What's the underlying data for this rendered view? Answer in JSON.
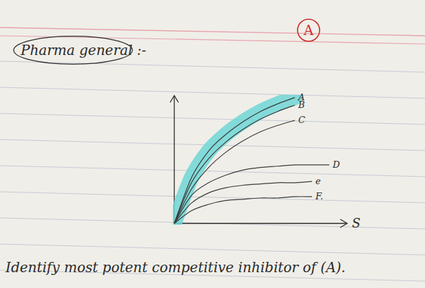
{
  "chart_data": {
    "type": "line",
    "title": "Pharma general :-",
    "x_label": "S",
    "x": [
      0,
      1,
      2,
      3,
      4,
      5,
      6,
      7,
      8,
      9
    ],
    "series": [
      {
        "name": "A",
        "color": "#3a3a3a",
        "values": [
          0,
          3.6,
          5.7,
          7.0,
          8.0,
          8.8,
          9.4,
          9.9,
          null,
          null
        ]
      },
      {
        "name": "B",
        "color": "#3a3a3a",
        "values": [
          0,
          3.2,
          5.1,
          6.4,
          7.4,
          8.2,
          8.8,
          9.3,
          null,
          null
        ]
      },
      {
        "name": "C",
        "color": "#3a3a3a",
        "values": [
          0,
          2.7,
          4.4,
          5.6,
          6.5,
          7.2,
          7.7,
          8.1,
          null,
          null
        ]
      },
      {
        "name": "D",
        "color": "#3a3a3a",
        "values": [
          0,
          2.2,
          3.2,
          3.8,
          4.2,
          4.4,
          4.5,
          4.6,
          4.6,
          4.6
        ]
      },
      {
        "name": "e",
        "color": "#3a3a3a",
        "values": [
          0,
          1.6,
          2.4,
          2.8,
          3.0,
          3.1,
          3.2,
          3.2,
          3.3,
          null
        ]
      },
      {
        "name": "F.",
        "color": "#3a3a3a",
        "values": [
          0,
          1.0,
          1.5,
          1.8,
          1.9,
          2.0,
          2.0,
          2.1,
          2.1,
          null
        ]
      }
    ],
    "xlim": [
      0,
      10
    ],
    "ylim": [
      0,
      10
    ],
    "tick_labels": false,
    "grid": false,
    "annotations": [
      "Identify most potent competitive inhibitor of (A).",
      "A"
    ]
  }
}
